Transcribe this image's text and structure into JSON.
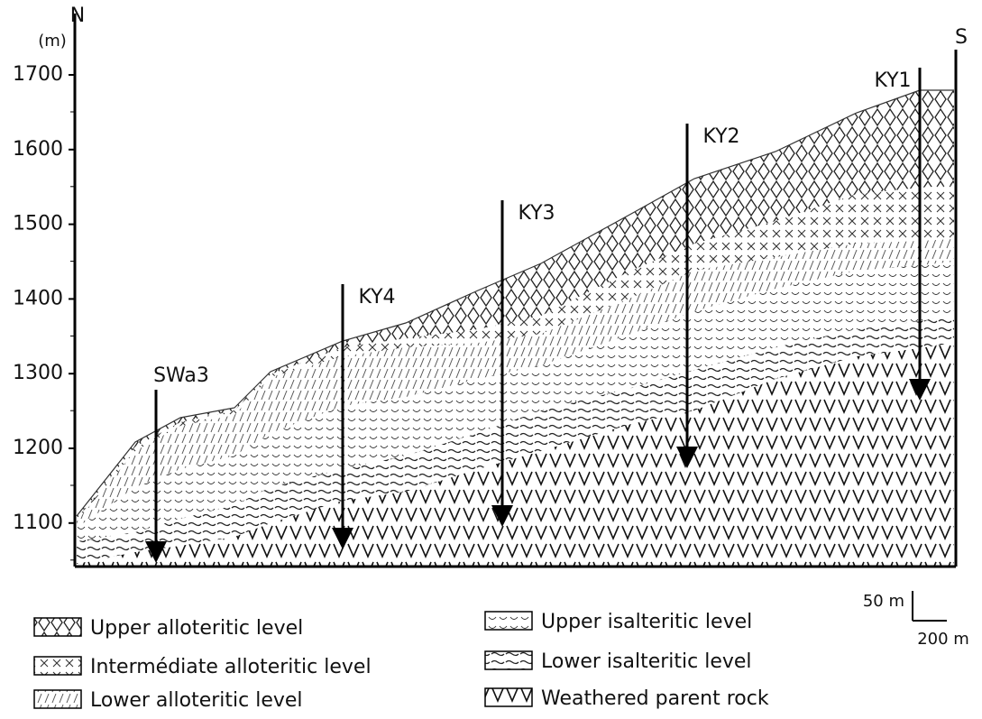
{
  "section": {
    "north": "N",
    "south": "S",
    "unit": "(m)",
    "ticks": [
      1100,
      1200,
      1300,
      1400,
      1500,
      1600,
      1700
    ],
    "wells": [
      "SWa3",
      "KY4",
      "KY3",
      "KY2",
      "KY1"
    ]
  },
  "legend": [
    "Upper alloteritic level",
    "Intermédiate alloteritic level",
    "Lower alloteritic level",
    "Upper isalteritic level",
    "Lower isalteritic level",
    "Weathered parent rock"
  ],
  "scale": {
    "vertical": "50 m",
    "horizontal": "200 m"
  }
}
